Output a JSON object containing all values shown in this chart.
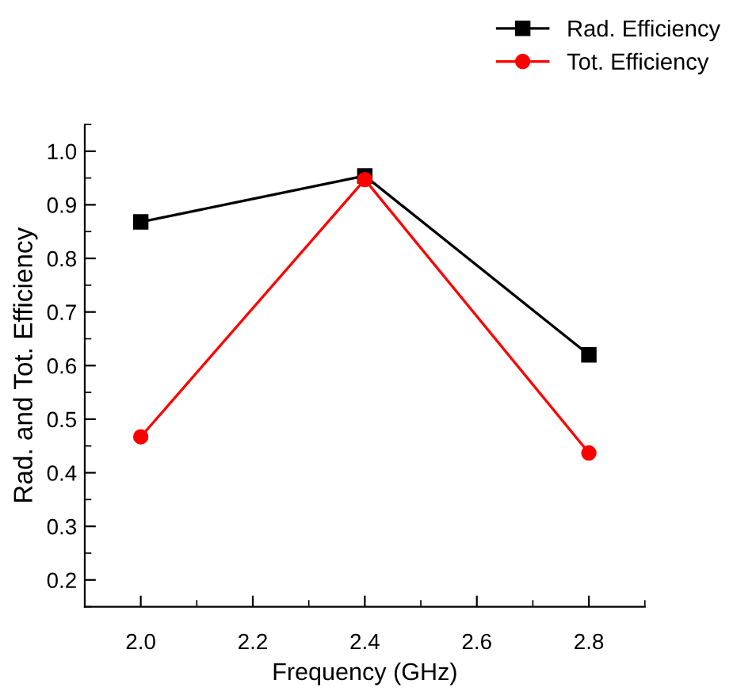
{
  "chart_data": {
    "type": "line",
    "xlabel": "Frequency (GHz)",
    "ylabel": "Rad. and Tot. Efficiency",
    "x": [
      2.0,
      2.4,
      2.8
    ],
    "series": [
      {
        "name": "Rad. Efficiency",
        "color": "#000000",
        "marker": "square",
        "values": [
          0.868,
          0.954,
          0.62
        ]
      },
      {
        "name": "Tot. Efficiency",
        "color": "#ff0000",
        "marker": "circle",
        "values": [
          0.467,
          0.947,
          0.437
        ]
      }
    ],
    "xlim": [
      1.9,
      2.9
    ],
    "xticks": [
      {
        "value": 2.0,
        "label": "2.0"
      },
      2.2,
      2.4,
      2.6,
      2.8
    ],
    "ylim": [
      0.15,
      1.05
    ],
    "yticks": [
      0.2,
      0.3,
      0.4,
      0.5,
      0.6,
      0.7,
      0.8,
      0.9,
      {
        "value": 1.0,
        "label": "1.0"
      }
    ],
    "grid": false,
    "legend": "top right",
    "line_style": "solid"
  }
}
